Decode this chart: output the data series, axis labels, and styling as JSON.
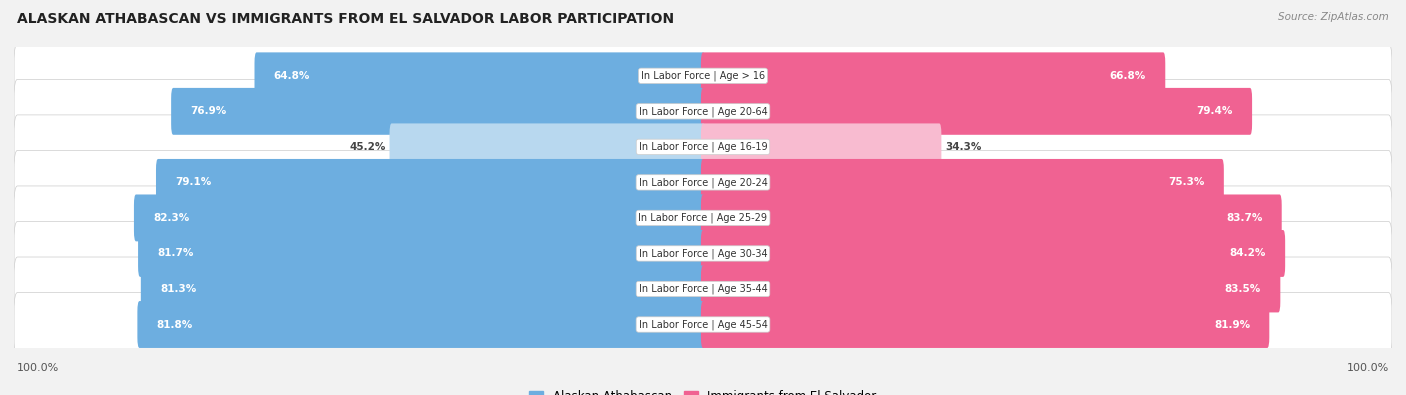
{
  "title": "ALASKAN ATHABASCAN VS IMMIGRANTS FROM EL SALVADOR LABOR PARTICIPATION",
  "source": "Source: ZipAtlas.com",
  "categories": [
    "In Labor Force | Age > 16",
    "In Labor Force | Age 20-64",
    "In Labor Force | Age 16-19",
    "In Labor Force | Age 20-24",
    "In Labor Force | Age 25-29",
    "In Labor Force | Age 30-34",
    "In Labor Force | Age 35-44",
    "In Labor Force | Age 45-54"
  ],
  "left_values": [
    64.8,
    76.9,
    45.2,
    79.1,
    82.3,
    81.7,
    81.3,
    81.8
  ],
  "right_values": [
    66.8,
    79.4,
    34.3,
    75.3,
    83.7,
    84.2,
    83.5,
    81.9
  ],
  "left_color": "#6daee0",
  "right_color": "#f06292",
  "left_color_light": "#b8d8ef",
  "right_color_light": "#f8bbd0",
  "left_label": "Alaskan Athabascan",
  "right_label": "Immigrants from El Salvador",
  "bg_color": "#f2f2f2",
  "row_bg_color": "#ffffff",
  "max_val": 100.0,
  "figsize": [
    14.06,
    3.95
  ],
  "dpi": 100
}
